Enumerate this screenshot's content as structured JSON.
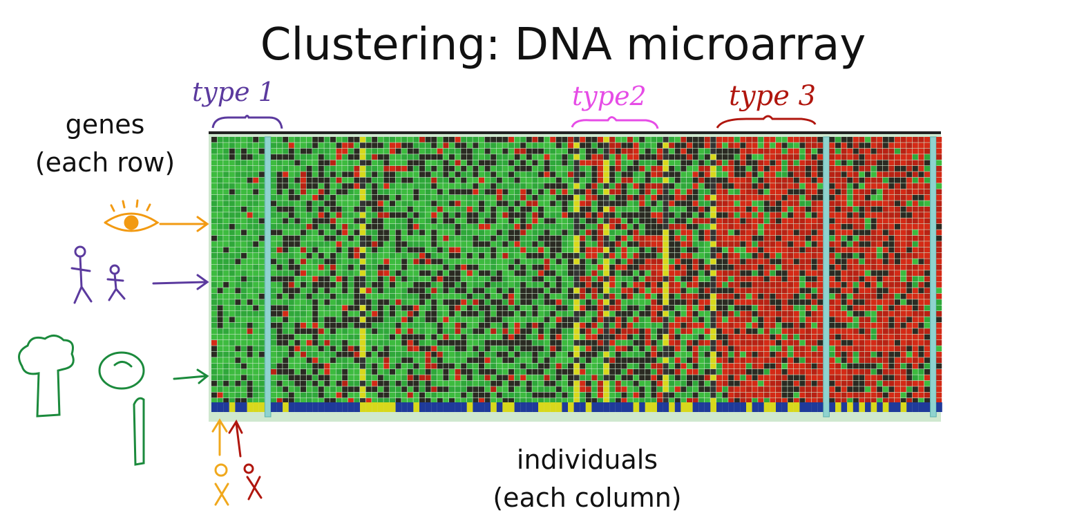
{
  "title": "Clustering: DNA microarray",
  "row_label": {
    "line1": "genes",
    "line2": "(each row)"
  },
  "column_label": {
    "line1": "individuals",
    "line2": "(each column)"
  },
  "annotations": {
    "type1": "type 1",
    "type2": "type2",
    "type3": "type 3"
  }
}
